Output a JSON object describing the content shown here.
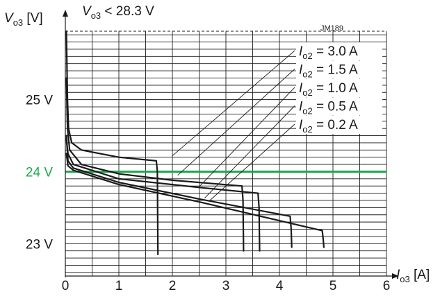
{
  "chart_data": {
    "type": "line",
    "title_label": {
      "var": "V",
      "sub": "o3",
      "rest": " < 28.3 V"
    },
    "ylabel": {
      "var": "V",
      "sub": "o3",
      "unit": " [V]"
    },
    "xlabel": {
      "var": "I",
      "sub": "o3",
      "unit": " [A]"
    },
    "id_label": "JM189",
    "x_ticks": [
      "0",
      "1",
      "2",
      "3",
      "4",
      "5",
      "6"
    ],
    "y_ticks": [
      {
        "value": 23,
        "label": "23 V"
      },
      {
        "value": 24,
        "label": "24 V"
      },
      {
        "value": 25,
        "label": "25 V"
      }
    ],
    "xlim": [
      0,
      6
    ],
    "ylim": [
      22.55,
      25.95
    ],
    "limit_value": 25.95,
    "highlight": {
      "value": 24,
      "color": "#1ea84e"
    },
    "grid": true,
    "legend_position": "top-right",
    "series": [
      {
        "var": "I",
        "sub": "o2",
        "value_label": " = 3.0 A",
        "points": [
          [
            0.02,
            25.95
          ],
          [
            0.04,
            25.0
          ],
          [
            0.06,
            24.6
          ],
          [
            0.12,
            24.4
          ],
          [
            0.3,
            24.3
          ],
          [
            1.0,
            24.2
          ],
          [
            1.7,
            24.15
          ],
          [
            1.72,
            24.0
          ],
          [
            1.73,
            22.85
          ]
        ]
      },
      {
        "var": "I",
        "sub": "o2",
        "value_label": " = 1.5 A",
        "points": [
          [
            0.02,
            25.3
          ],
          [
            0.04,
            24.6
          ],
          [
            0.08,
            24.3
          ],
          [
            0.3,
            24.1
          ],
          [
            1.0,
            23.97
          ],
          [
            2.0,
            23.88
          ],
          [
            3.3,
            23.8
          ],
          [
            3.32,
            23.6
          ],
          [
            3.33,
            22.9
          ]
        ]
      },
      {
        "var": "I",
        "sub": "o2",
        "value_label": " = 1.0 A",
        "points": [
          [
            0.02,
            24.45
          ],
          [
            0.05,
            24.25
          ],
          [
            0.15,
            24.1
          ],
          [
            1.0,
            23.9
          ],
          [
            2.5,
            23.78
          ],
          [
            3.6,
            23.7
          ],
          [
            3.62,
            23.5
          ],
          [
            3.63,
            22.9
          ]
        ]
      },
      {
        "var": "I",
        "sub": "o2",
        "value_label": " = 0.5 A",
        "points": [
          [
            0.02,
            24.5
          ],
          [
            0.05,
            24.15
          ],
          [
            0.15,
            24.05
          ],
          [
            1.0,
            23.85
          ],
          [
            2.5,
            23.62
          ],
          [
            4.2,
            23.38
          ],
          [
            4.22,
            23.2
          ],
          [
            4.23,
            22.95
          ]
        ]
      },
      {
        "var": "I",
        "sub": "o2",
        "value_label": " = 0.2 A",
        "points": [
          [
            0.02,
            24.25
          ],
          [
            0.05,
            24.08
          ],
          [
            0.15,
            24.02
          ],
          [
            1.0,
            23.82
          ],
          [
            2.5,
            23.58
          ],
          [
            4.8,
            23.18
          ],
          [
            4.82,
            23.05
          ],
          [
            4.83,
            22.95
          ]
        ]
      }
    ]
  }
}
